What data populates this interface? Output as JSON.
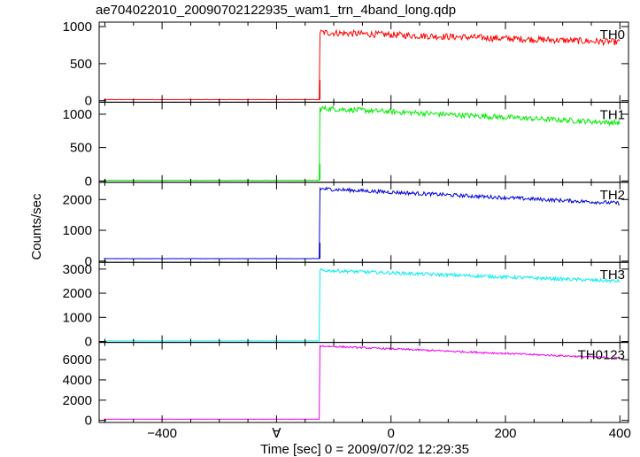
{
  "chart_title": "ae704022010_20090702122935_wam1_trn_4band_long.qdp",
  "colors": {
    "TH0": "#ff0000",
    "TH1": "#00ee00",
    "TH2": "#0000dd",
    "TH3": "#00eeee",
    "TH0123": "#ee00ee"
  },
  "chart_data": {
    "type": "line",
    "title": "ae704022010_20090702122935_wam1_trn_4band_long.qdp",
    "xlabel": "Time [sec] 0 = 2009/07/02 12:29:35",
    "ylabel": "Counts/sec",
    "xlim": [
      -510,
      415
    ],
    "x_ticks": [
      -400,
      -200,
      0,
      200,
      400
    ],
    "x_tick_labels": [
      "−400",
      "∀",
      "0",
      "200",
      "400"
    ],
    "trigger_time": -125,
    "grid": false,
    "legend": "panel labels top-right",
    "panels": [
      {
        "name": "TH0",
        "color": "#ff0000",
        "ylim": [
          -20,
          1060
        ],
        "y_ticks": [
          0,
          500,
          1000
        ],
        "y_tick_labels": [
          "0",
          "500",
          "1000"
        ],
        "pre_level": 15,
        "post_start": 920,
        "post_end": 790,
        "noise": 45,
        "spike": 280
      },
      {
        "name": "TH1",
        "color": "#00ee00",
        "ylim": [
          -20,
          1180
        ],
        "y_ticks": [
          0,
          500,
          1000
        ],
        "y_tick_labels": [
          "0",
          "500",
          "1000"
        ],
        "pre_level": 10,
        "post_start": 1090,
        "post_end": 870,
        "noise": 40,
        "spike": 260
      },
      {
        "name": "TH2",
        "color": "#0000dd",
        "ylim": [
          -40,
          2560
        ],
        "y_ticks": [
          0,
          1000,
          2000
        ],
        "y_tick_labels": [
          "0",
          "1000",
          "2000"
        ],
        "pre_level": 80,
        "post_start": 2350,
        "post_end": 1880,
        "noise": 60,
        "spike": 600
      },
      {
        "name": "TH3",
        "color": "#00eeee",
        "ylim": [
          -40,
          3280
        ],
        "y_ticks": [
          0,
          1000,
          2000,
          3000
        ],
        "y_tick_labels": [
          "0",
          "1000",
          "2000",
          "3000"
        ],
        "pre_level": 20,
        "post_start": 2950,
        "post_end": 2500,
        "noise": 70,
        "spike": 0
      },
      {
        "name": "TH0123",
        "color": "#ee00ee",
        "ylim": [
          -200,
          7700
        ],
        "y_ticks": [
          0,
          2000,
          4000,
          6000
        ],
        "y_tick_labels": [
          "0",
          "2000",
          "4000",
          "6000"
        ],
        "pre_level": 120,
        "post_start": 7350,
        "post_end": 6150,
        "noise": 90,
        "spike": 0
      }
    ]
  }
}
